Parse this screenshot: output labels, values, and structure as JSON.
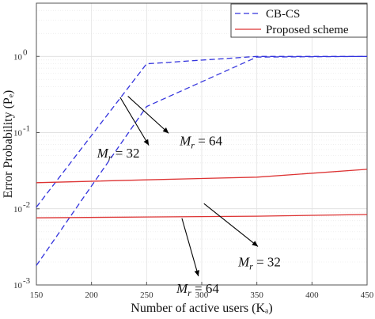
{
  "chart_data": {
    "type": "line",
    "title": "",
    "xlabel": "Number of active users (K_a)",
    "ylabel": "Error Probability (P_e)",
    "xlim": [
      150,
      450
    ],
    "ylim": [
      0.001,
      5
    ],
    "yscale": "log",
    "grid": true,
    "legend_position": "top-right",
    "x_ticks": [
      150,
      200,
      250,
      300,
      350,
      400,
      450
    ],
    "y_ticks": [
      {
        "value": 0.001,
        "base": "10",
        "exp": "-3"
      },
      {
        "value": 0.01,
        "base": "10",
        "exp": "-2"
      },
      {
        "value": 0.1,
        "base": "10",
        "exp": "-1"
      },
      {
        "value": 1,
        "base": "10",
        "exp": "0"
      }
    ],
    "legend": [
      {
        "label": "CB-CS",
        "color": "#3333dd",
        "style": "dashed"
      },
      {
        "label": "Proposed scheme",
        "color": "#dd3333",
        "style": "solid"
      }
    ],
    "series": [
      {
        "name": "CB-CS",
        "group": "M_r = 32",
        "color": "#3333dd",
        "style": "dashed",
        "x": [
          150,
          250,
          350,
          450
        ],
        "y": [
          0.0105,
          0.8,
          1.0,
          1.0
        ]
      },
      {
        "name": "CB-CS",
        "group": "M_r = 64",
        "color": "#3333dd",
        "style": "dashed",
        "x": [
          150,
          250,
          350,
          450
        ],
        "y": [
          0.0018,
          0.22,
          0.98,
          1.0
        ]
      },
      {
        "name": "Proposed scheme",
        "group": "M_r = 32",
        "color": "#dd3333",
        "style": "solid",
        "x": [
          150,
          250,
          350,
          450
        ],
        "y": [
          0.022,
          0.024,
          0.026,
          0.033
        ]
      },
      {
        "name": "Proposed scheme",
        "group": "M_r = 64",
        "color": "#dd3333",
        "style": "solid",
        "x": [
          150,
          250,
          350,
          450
        ],
        "y": [
          0.0076,
          0.0078,
          0.008,
          0.0084
        ]
      }
    ],
    "annotations": [
      {
        "var": "M",
        "sub": "r",
        "rest": " = 32",
        "text_x": 205,
        "text_y": 0.047,
        "arrow_from": [
          226,
          0.29
        ],
        "arrow_to": [
          252,
          0.068
        ]
      },
      {
        "var": "M",
        "sub": "r",
        "rest": " = 64",
        "text_x": 280,
        "text_y": 0.068,
        "arrow_from": [
          233,
          0.3
        ],
        "arrow_to": [
          270,
          0.098
        ]
      },
      {
        "var": "M",
        "sub": "r",
        "rest": " = 32",
        "text_x": 333,
        "text_y": 0.00175,
        "arrow_from": [
          302,
          0.0117
        ],
        "arrow_to": [
          351,
          0.0032
        ]
      },
      {
        "var": "M",
        "sub": "r",
        "rest": " = 64",
        "text_x": 277,
        "text_y": 0.00079,
        "arrow_from": [
          282,
          0.0075
        ],
        "arrow_to": [
          297,
          0.0013
        ]
      }
    ]
  }
}
